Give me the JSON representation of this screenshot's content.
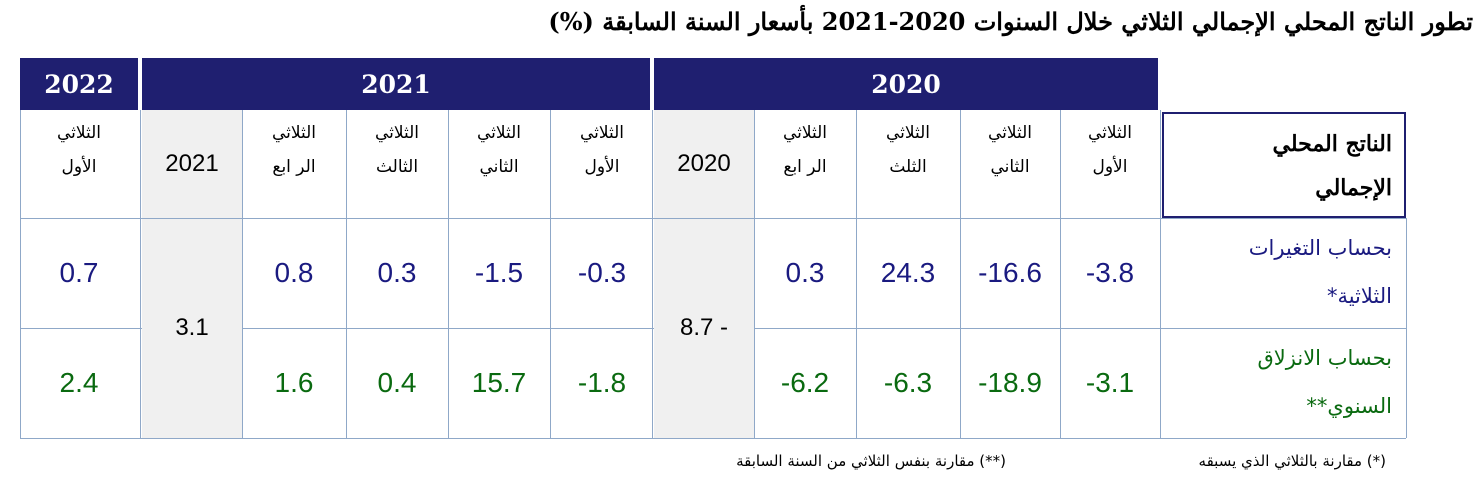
{
  "title": {
    "text": "تطور الناتج المحلي الإجمالي الثلاثي خلال السنوات 2020-2021 بأسعار السنة السابقة",
    "pct": "(%)"
  },
  "years": {
    "y2022": "2022",
    "y2021": "2021",
    "y2020": "2020"
  },
  "header_label": {
    "line1": "الناتج المحلي",
    "line2": "الإجمالي"
  },
  "quarters": {
    "q1_2020": {
      "l1": "الثلاثي",
      "l2": "الأول"
    },
    "q2_2020": {
      "l1": "الثلاثي",
      "l2": "الثاني"
    },
    "q3_2020": {
      "l1": "الثلاثي",
      "l2": "الثلث"
    },
    "q4_2020": {
      "l1": "الثلاثي",
      "l2": "الر ابع"
    },
    "annual_2020": "2020",
    "q1_2021": {
      "l1": "الثلاثي",
      "l2": "الأول"
    },
    "q2_2021": {
      "l1": "الثلاثي",
      "l2": "الثاني"
    },
    "q3_2021": {
      "l1": "الثلاثي",
      "l2": "الثالث"
    },
    "q4_2021": {
      "l1": "الثلاثي",
      "l2": "الر ابع"
    },
    "annual_2021": "2021",
    "q1_2022": {
      "l1": "الثلاثي",
      "l2": "الأول"
    }
  },
  "rows": {
    "qoq": {
      "label1": "بحساب التغيرات",
      "label2": "الثلاثية*",
      "color": "#1a1a80",
      "q1_2020": "-3.8",
      "q2_2020": "-16.6",
      "q3_2020": "24.3",
      "q4_2020": "0.3",
      "q1_2021": "-0.3",
      "q2_2021": "-1.5",
      "q3_2021": "0.3",
      "q4_2021": "0.8",
      "q1_2022": "0.7"
    },
    "yoy": {
      "label1": "بحساب الانزلاق",
      "label2": "السنوي**",
      "color": "#0a6a10",
      "q1_2020": "-3.1",
      "q2_2020": "-18.9",
      "q3_2020": "-6.3",
      "q4_2020": "-6.2",
      "q1_2021": "-1.8",
      "q2_2021": "15.7",
      "q3_2021": "0.4",
      "q4_2021": "1.6",
      "q1_2022": "2.4"
    }
  },
  "annual_values": {
    "y2020": "8.7 -",
    "y2021": "3.1"
  },
  "notes": {
    "note1": "(*) مقارنة بالثلاثي الذي يسبقه",
    "note2": "(**) مقارنة بنفس الثلاثي من السنة السابقة"
  }
}
